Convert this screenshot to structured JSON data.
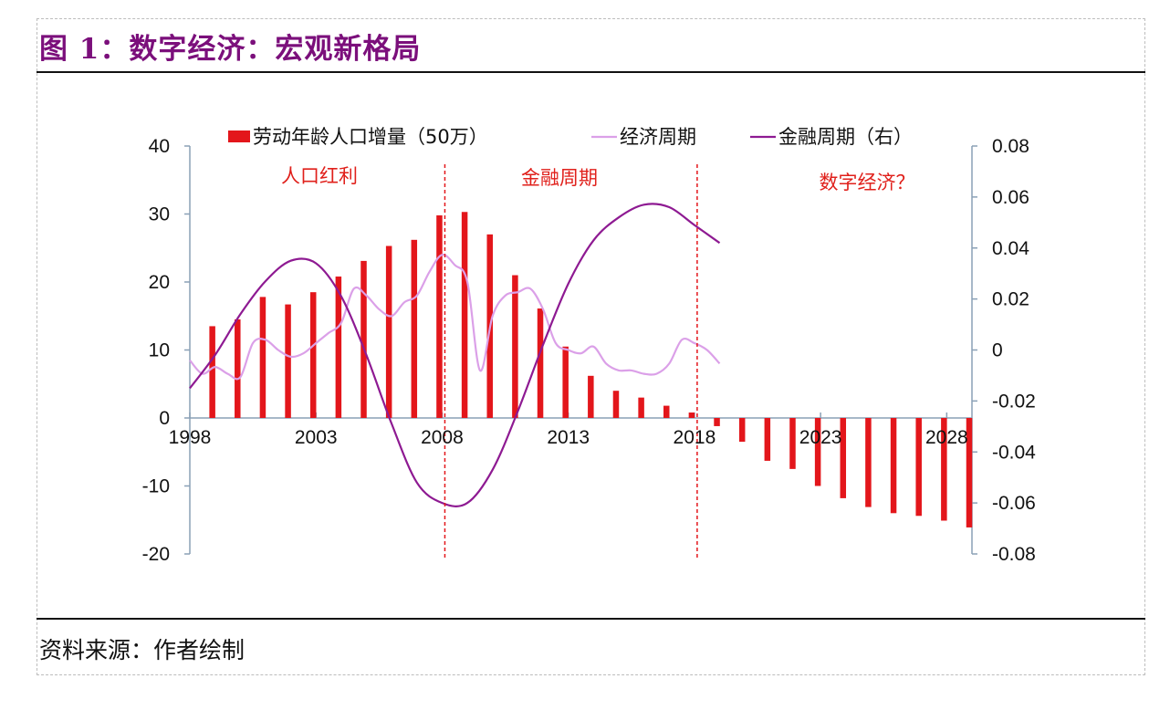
{
  "figure": {
    "title": "图 1：数字经济：宏观新格局",
    "source": "资料来源：作者绘制"
  },
  "colors": {
    "title": "#7b0f7b",
    "bars": "#e3161b",
    "economic_cycle": "#dba0e8",
    "financial_cycle": "#8e1a92",
    "era_text": "#e0201b",
    "axis": "#8aa0b6"
  },
  "chart_data": {
    "type": "bar",
    "grid": false,
    "legend_position": "top",
    "x_ticks": [
      1998,
      2003,
      2008,
      2013,
      2018,
      2023,
      2028
    ],
    "xlim": [
      1998,
      2029
    ],
    "y_left": {
      "ylim": [
        -20,
        40
      ],
      "ticks": [
        "40",
        "30",
        "20",
        "10",
        "0",
        "-10",
        "-20"
      ]
    },
    "y_right": {
      "ylim": [
        -0.08,
        0.08
      ],
      "ticks": [
        "0.08",
        "0.06",
        "0.04",
        "0.02",
        "0",
        "-0.02",
        "-0.04",
        "-0.06",
        "-0.08"
      ]
    },
    "era_labels": [
      "人口红利",
      "金融周期",
      "数字经济？"
    ],
    "era_dividers": [
      2008,
      2018
    ],
    "series": [
      {
        "name": "劳动年龄人口增量（50万）",
        "type": "bar",
        "axis": "left",
        "x": [
          1999,
          2000,
          2001,
          2002,
          2003,
          2004,
          2005,
          2006,
          2007,
          2008,
          2009,
          2010,
          2011,
          2012,
          2013,
          2014,
          2015,
          2016,
          2017,
          2018,
          2019,
          2020,
          2021,
          2022,
          2023,
          2024,
          2025,
          2026,
          2027,
          2028,
          2029
        ],
        "values": [
          13.5,
          14.5,
          17.8,
          16.7,
          18.5,
          20.8,
          23.1,
          25.3,
          26.2,
          29.8,
          30.3,
          27.0,
          21.0,
          16.1,
          10.5,
          6.2,
          4.0,
          3.0,
          1.8,
          0.8,
          -1.2,
          -3.5,
          -6.3,
          -7.5,
          -10.0,
          -11.8,
          -13.1,
          -14.0,
          -14.4,
          -15.1,
          -16.1
        ]
      },
      {
        "name": "经济周期",
        "type": "line",
        "axis": "left",
        "x": [
          1998,
          1998.5,
          1999,
          1999.5,
          2000,
          2000.5,
          2001,
          2001.5,
          2002,
          2002.5,
          2003,
          2003.5,
          2004,
          2004.5,
          2005,
          2005.5,
          2006,
          2006.5,
          2007,
          2007.5,
          2008,
          2008.5,
          2009,
          2009.5,
          2010,
          2010.5,
          2011,
          2011.5,
          2012,
          2012.5,
          2013,
          2013.5,
          2014,
          2014.5,
          2015,
          2015.5,
          2016,
          2016.5,
          2017,
          2017.5,
          2018,
          2018.5,
          2019
        ],
        "values": [
          8.5,
          6.5,
          7.5,
          6.5,
          6.0,
          11.0,
          11.5,
          10.0,
          9.0,
          9.5,
          11.0,
          12.5,
          14.0,
          19.0,
          18.0,
          16.0,
          15.0,
          17.0,
          18.0,
          21.5,
          24.0,
          22.5,
          20.0,
          7.0,
          15.0,
          18.0,
          18.5,
          19.0,
          16.0,
          11.0,
          10.0,
          9.5,
          10.5,
          8.0,
          7.0,
          7.0,
          6.5,
          6.5,
          8.0,
          11.5,
          11.0,
          10.0,
          8.0
        ]
      },
      {
        "name": "金融周期（右）",
        "type": "line",
        "axis": "right",
        "x": [
          1998,
          1999,
          2000,
          2001,
          2002,
          2003,
          2004,
          2005,
          2006,
          2007,
          2008,
          2009,
          2010,
          2011,
          2012,
          2013,
          2014,
          2015,
          2016,
          2017,
          2018,
          2019
        ],
        "values": [
          -0.015,
          -0.002,
          0.014,
          0.027,
          0.035,
          0.034,
          0.021,
          -0.002,
          -0.029,
          -0.052,
          -0.06,
          -0.06,
          -0.047,
          -0.024,
          0.002,
          0.026,
          0.043,
          0.052,
          0.057,
          0.056,
          0.049,
          0.042
        ]
      }
    ]
  }
}
